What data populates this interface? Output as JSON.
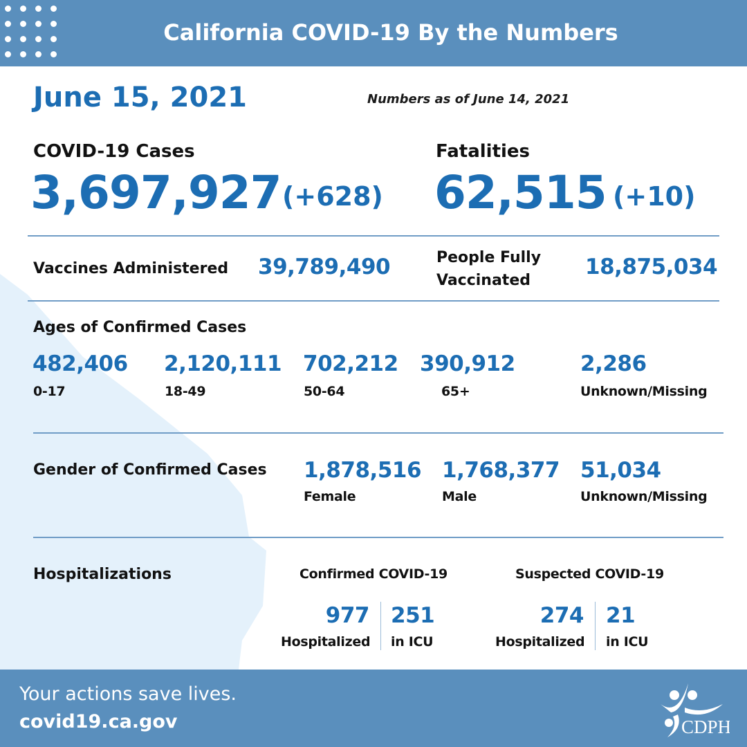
{
  "header": {
    "title": "California COVID-19 By the Numbers"
  },
  "date": "June 15, 2021",
  "as_of": "Numbers as of June 14, 2021",
  "cases": {
    "label": "COVID-19 Cases",
    "value": "3,697,927",
    "change": "(+628)"
  },
  "fatalities": {
    "label": "Fatalities",
    "value": "62,515",
    "change": "(+10)"
  },
  "vaccines": {
    "label": "Vaccines Administered",
    "value": "39,789,490"
  },
  "fully": {
    "label_line1": "People Fully",
    "label_line2": "Vaccinated",
    "value": "18,875,034"
  },
  "ages": {
    "label": "Ages of Confirmed Cases",
    "items": [
      {
        "value": "482,406",
        "label": "0-17"
      },
      {
        "value": "2,120,111",
        "label": "18-49"
      },
      {
        "value": "702,212",
        "label": "50-64"
      },
      {
        "value": "390,912",
        "label": "65+"
      },
      {
        "value": "2,286",
        "label": "Unknown/Missing"
      }
    ]
  },
  "gender": {
    "label": "Gender of Confirmed Cases",
    "items": [
      {
        "value": "1,878,516",
        "label": "Female"
      },
      {
        "value": "1,768,377",
        "label": "Male"
      },
      {
        "value": "51,034",
        "label": "Unknown/Missing"
      }
    ]
  },
  "hosp": {
    "label": "Hospitalizations",
    "confirmed": {
      "label": "Confirmed COVID-19",
      "hosp_value": "977",
      "hosp_label": "Hospitalized",
      "icu_value": "251",
      "icu_label": "in ICU"
    },
    "suspected": {
      "label": "Suspected COVID-19",
      "hosp_value": "274",
      "hosp_label": "Hospitalized",
      "icu_value": "21",
      "icu_label": "in ICU"
    }
  },
  "footer": {
    "tagline": "Your actions save lives.",
    "url": "covid19.ca.gov",
    "logo_text": "CDPH"
  },
  "colors": {
    "header": "#5a8fbd",
    "accent": "#1c6db3",
    "map": "#e4f1fb"
  }
}
